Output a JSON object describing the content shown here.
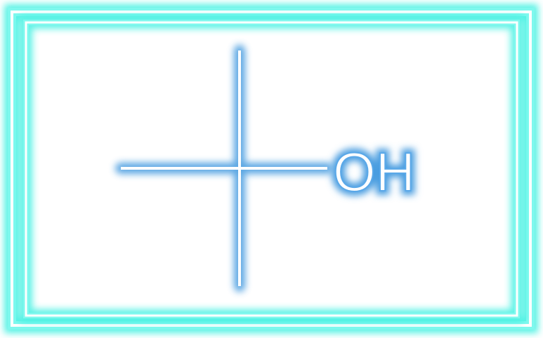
{
  "molecule": {
    "label_oh": "OH"
  },
  "colors": {
    "background": "#ffffff",
    "frame_glow": "#38f0e0",
    "bond_glow": "#4a9de0",
    "bond_core": "#ffffff"
  }
}
